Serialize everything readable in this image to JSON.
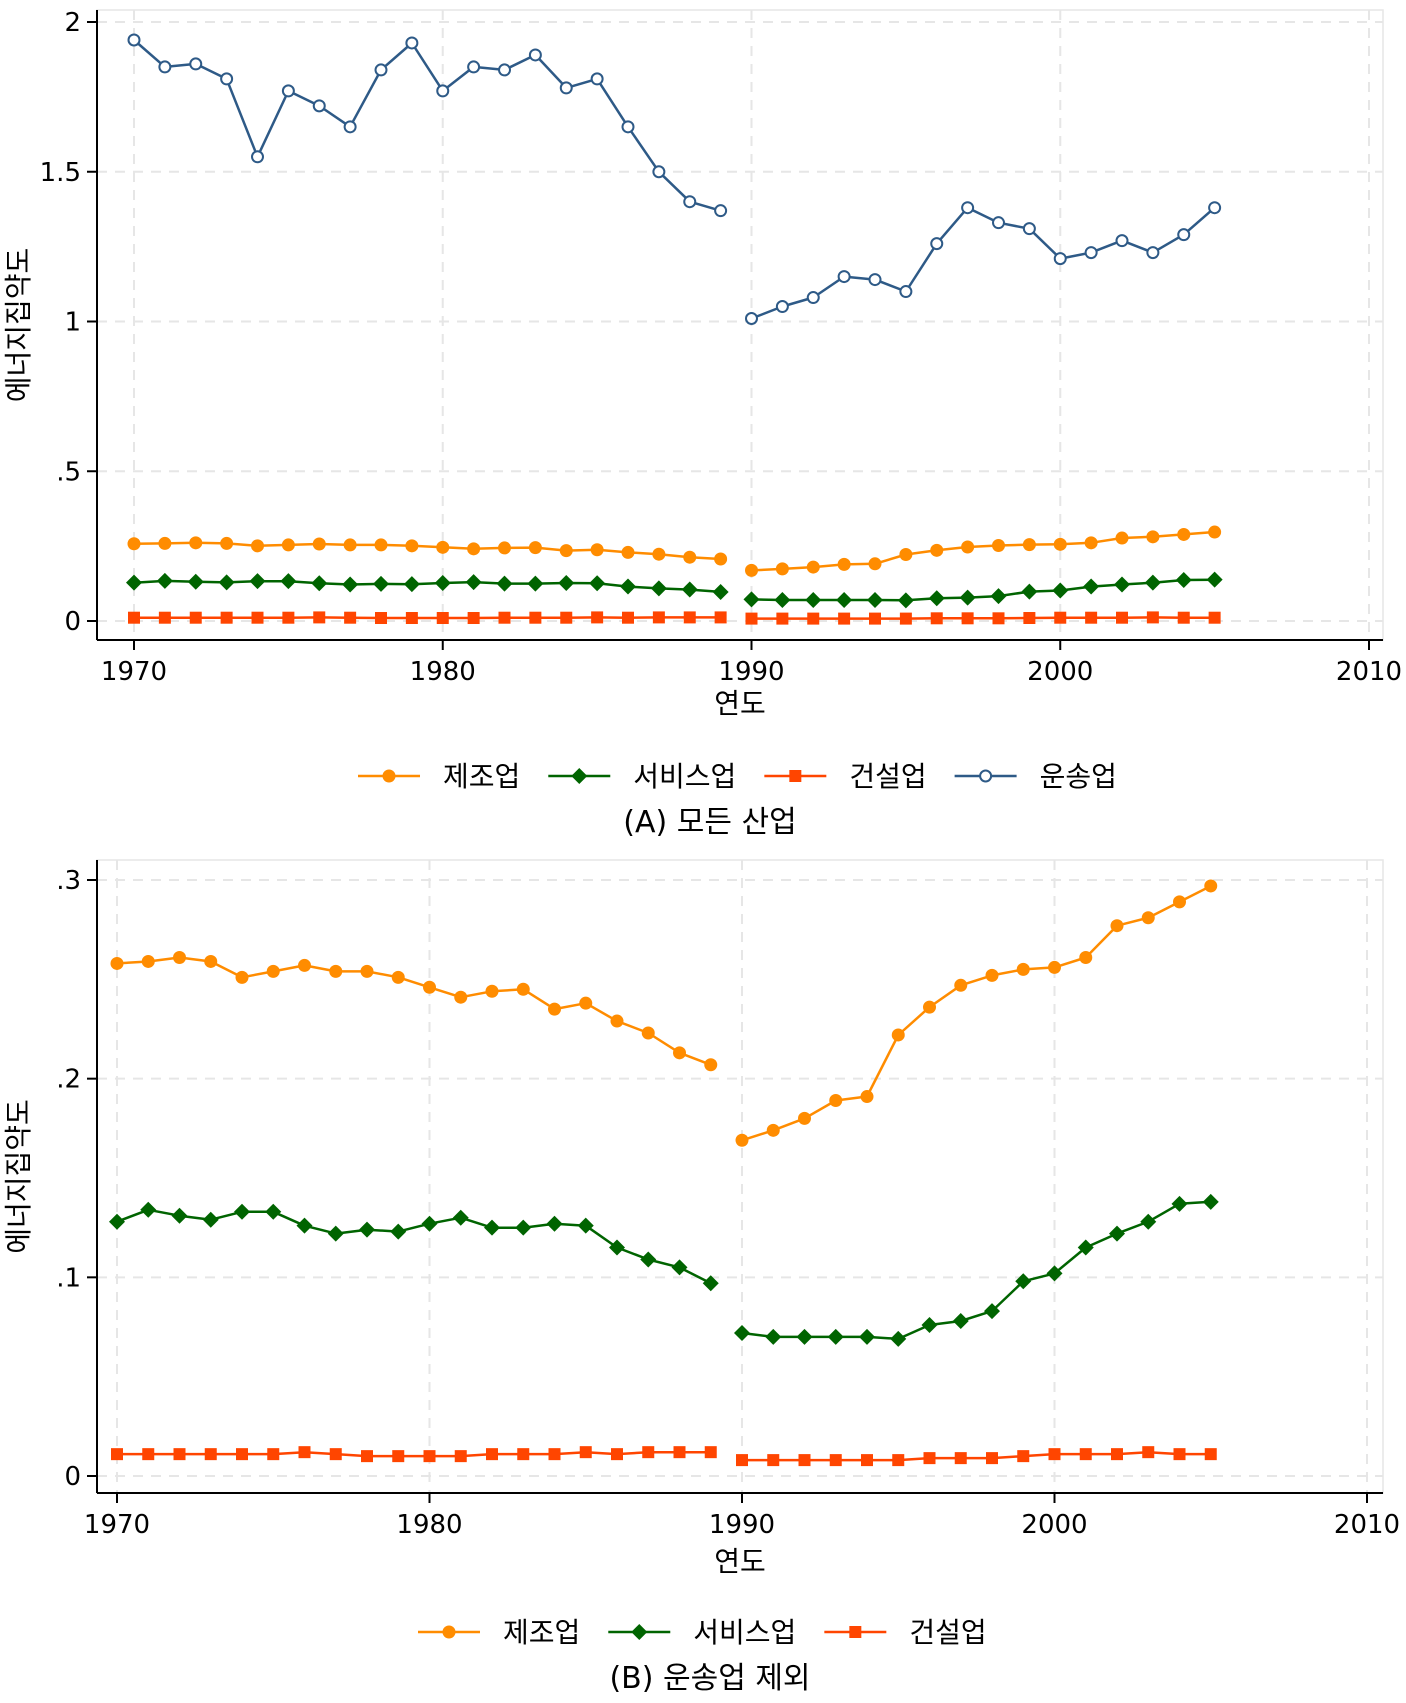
{
  "colors": {
    "manufacturing": "#ff8c00",
    "services": "#006400",
    "construction": "#ff4500",
    "transport": "#2e5a87",
    "grid": "#e6e6e6",
    "axis": "#000000"
  },
  "icons": {
    "manufacturing": "filled-circle-marker",
    "services": "filled-diamond-marker",
    "construction": "filled-square-marker",
    "transport": "hollow-circle-marker"
  },
  "chart_data": [
    {
      "type": "line",
      "title": "",
      "caption": "(A) 모든 산업",
      "xlabel": "연도",
      "ylabel": "에너지집약도",
      "xlim": [
        1970,
        2010
      ],
      "ylim": [
        0,
        2
      ],
      "xticks": [
        1970,
        1980,
        1990,
        2000,
        2010
      ],
      "xtick_labels": [
        "1970",
        "1980",
        "1990",
        "2000",
        "2010"
      ],
      "yticks": [
        0,
        0.5,
        1,
        1.5,
        2
      ],
      "ytick_labels": [
        "0",
        ".5",
        "1",
        "1.5",
        "2"
      ],
      "grid": true,
      "legend_position": "bottom",
      "series": [
        {
          "name": "제조업",
          "key": "manufacturing",
          "marker": "circle",
          "x": [
            1970,
            1971,
            1972,
            1973,
            1974,
            1975,
            1976,
            1977,
            1978,
            1979,
            1980,
            1981,
            1982,
            1983,
            1984,
            1985,
            1986,
            1987,
            1988,
            1989,
            1990,
            1991,
            1992,
            1993,
            1994,
            1995,
            1996,
            1997,
            1998,
            1999,
            2000,
            2001,
            2002,
            2003,
            2004,
            2005
          ],
          "y": [
            0.258,
            0.259,
            0.261,
            0.259,
            0.251,
            0.254,
            0.257,
            0.254,
            0.254,
            0.251,
            0.246,
            0.241,
            0.244,
            0.245,
            0.235,
            0.238,
            0.229,
            0.223,
            0.213,
            0.207,
            0.169,
            0.174,
            0.18,
            0.189,
            0.191,
            0.222,
            0.236,
            0.247,
            0.252,
            0.255,
            0.256,
            0.261,
            0.277,
            0.281,
            0.289,
            0.297
          ]
        },
        {
          "name": "서비스업",
          "key": "services",
          "marker": "diamond",
          "x": [
            1970,
            1971,
            1972,
            1973,
            1974,
            1975,
            1976,
            1977,
            1978,
            1979,
            1980,
            1981,
            1982,
            1983,
            1984,
            1985,
            1986,
            1987,
            1988,
            1989,
            1990,
            1991,
            1992,
            1993,
            1994,
            1995,
            1996,
            1997,
            1998,
            1999,
            2000,
            2001,
            2002,
            2003,
            2004,
            2005
          ],
          "y": [
            0.128,
            0.134,
            0.131,
            0.129,
            0.133,
            0.133,
            0.126,
            0.122,
            0.124,
            0.123,
            0.127,
            0.13,
            0.125,
            0.125,
            0.127,
            0.126,
            0.115,
            0.109,
            0.105,
            0.097,
            0.072,
            0.07,
            0.07,
            0.07,
            0.07,
            0.069,
            0.076,
            0.078,
            0.083,
            0.098,
            0.102,
            0.115,
            0.122,
            0.128,
            0.137,
            0.138
          ]
        },
        {
          "name": "건설업",
          "key": "construction",
          "marker": "square",
          "x": [
            1970,
            1971,
            1972,
            1973,
            1974,
            1975,
            1976,
            1977,
            1978,
            1979,
            1980,
            1981,
            1982,
            1983,
            1984,
            1985,
            1986,
            1987,
            1988,
            1989,
            1990,
            1991,
            1992,
            1993,
            1994,
            1995,
            1996,
            1997,
            1998,
            1999,
            2000,
            2001,
            2002,
            2003,
            2004,
            2005
          ],
          "y": [
            0.011,
            0.011,
            0.011,
            0.011,
            0.011,
            0.011,
            0.012,
            0.011,
            0.01,
            0.01,
            0.01,
            0.01,
            0.011,
            0.011,
            0.011,
            0.012,
            0.011,
            0.012,
            0.012,
            0.012,
            0.008,
            0.008,
            0.008,
            0.008,
            0.008,
            0.008,
            0.009,
            0.009,
            0.009,
            0.01,
            0.011,
            0.011,
            0.011,
            0.012,
            0.011,
            0.011
          ]
        },
        {
          "name": "운송업",
          "key": "transport",
          "marker": "hollow-circle",
          "x": [
            1970,
            1971,
            1972,
            1973,
            1974,
            1975,
            1976,
            1977,
            1978,
            1979,
            1980,
            1981,
            1982,
            1983,
            1984,
            1985,
            1986,
            1987,
            1988,
            1989,
            1990,
            1991,
            1992,
            1993,
            1994,
            1995,
            1996,
            1997,
            1998,
            1999,
            2000,
            2001,
            2002,
            2003,
            2004,
            2005
          ],
          "y": [
            1.94,
            1.85,
            1.86,
            1.81,
            1.55,
            1.77,
            1.72,
            1.65,
            1.84,
            1.93,
            1.77,
            1.85,
            1.84,
            1.89,
            1.78,
            1.81,
            1.65,
            1.5,
            1.4,
            1.37,
            1.01,
            1.05,
            1.08,
            1.15,
            1.14,
            1.1,
            1.26,
            1.38,
            1.33,
            1.31,
            1.21,
            1.23,
            1.27,
            1.23,
            1.29,
            1.38
          ]
        }
      ]
    },
    {
      "type": "line",
      "title": "",
      "caption": "(B) 운송업 제외",
      "xlabel": "연도",
      "ylabel": "에너지집약도",
      "xlim": [
        1970,
        2010
      ],
      "ylim": [
        0,
        0.3
      ],
      "xticks": [
        1970,
        1980,
        1990,
        2000,
        2010
      ],
      "xtick_labels": [
        "1970",
        "1980",
        "1990",
        "2000",
        "2010"
      ],
      "yticks": [
        0,
        0.1,
        0.2,
        0.3
      ],
      "ytick_labels": [
        "0",
        ".1",
        ".2",
        ".3"
      ],
      "grid": true,
      "legend_position": "bottom",
      "series": [
        {
          "name": "제조업",
          "key": "manufacturing",
          "marker": "circle",
          "x": [
            1970,
            1971,
            1972,
            1973,
            1974,
            1975,
            1976,
            1977,
            1978,
            1979,
            1980,
            1981,
            1982,
            1983,
            1984,
            1985,
            1986,
            1987,
            1988,
            1989,
            1990,
            1991,
            1992,
            1993,
            1994,
            1995,
            1996,
            1997,
            1998,
            1999,
            2000,
            2001,
            2002,
            2003,
            2004,
            2005
          ],
          "y": [
            0.258,
            0.259,
            0.261,
            0.259,
            0.251,
            0.254,
            0.257,
            0.254,
            0.254,
            0.251,
            0.246,
            0.241,
            0.244,
            0.245,
            0.235,
            0.238,
            0.229,
            0.223,
            0.213,
            0.207,
            0.169,
            0.174,
            0.18,
            0.189,
            0.191,
            0.222,
            0.236,
            0.247,
            0.252,
            0.255,
            0.256,
            0.261,
            0.277,
            0.281,
            0.289,
            0.297
          ]
        },
        {
          "name": "서비스업",
          "key": "services",
          "marker": "diamond",
          "x": [
            1970,
            1971,
            1972,
            1973,
            1974,
            1975,
            1976,
            1977,
            1978,
            1979,
            1980,
            1981,
            1982,
            1983,
            1984,
            1985,
            1986,
            1987,
            1988,
            1989,
            1990,
            1991,
            1992,
            1993,
            1994,
            1995,
            1996,
            1997,
            1998,
            1999,
            2000,
            2001,
            2002,
            2003,
            2004,
            2005
          ],
          "y": [
            0.128,
            0.134,
            0.131,
            0.129,
            0.133,
            0.133,
            0.126,
            0.122,
            0.124,
            0.123,
            0.127,
            0.13,
            0.125,
            0.125,
            0.127,
            0.126,
            0.115,
            0.109,
            0.105,
            0.097,
            0.072,
            0.07,
            0.07,
            0.07,
            0.07,
            0.069,
            0.076,
            0.078,
            0.083,
            0.098,
            0.102,
            0.115,
            0.122,
            0.128,
            0.137,
            0.138
          ]
        },
        {
          "name": "건설업",
          "key": "construction",
          "marker": "square",
          "x": [
            1970,
            1971,
            1972,
            1973,
            1974,
            1975,
            1976,
            1977,
            1978,
            1979,
            1980,
            1981,
            1982,
            1983,
            1984,
            1985,
            1986,
            1987,
            1988,
            1989,
            1990,
            1991,
            1992,
            1993,
            1994,
            1995,
            1996,
            1997,
            1998,
            1999,
            2000,
            2001,
            2002,
            2003,
            2004,
            2005
          ],
          "y": [
            0.011,
            0.011,
            0.011,
            0.011,
            0.011,
            0.011,
            0.012,
            0.011,
            0.01,
            0.01,
            0.01,
            0.01,
            0.011,
            0.011,
            0.011,
            0.012,
            0.011,
            0.012,
            0.012,
            0.012,
            0.008,
            0.008,
            0.008,
            0.008,
            0.008,
            0.008,
            0.009,
            0.009,
            0.009,
            0.01,
            0.011,
            0.011,
            0.011,
            0.012,
            0.011,
            0.011
          ]
        }
      ]
    }
  ]
}
